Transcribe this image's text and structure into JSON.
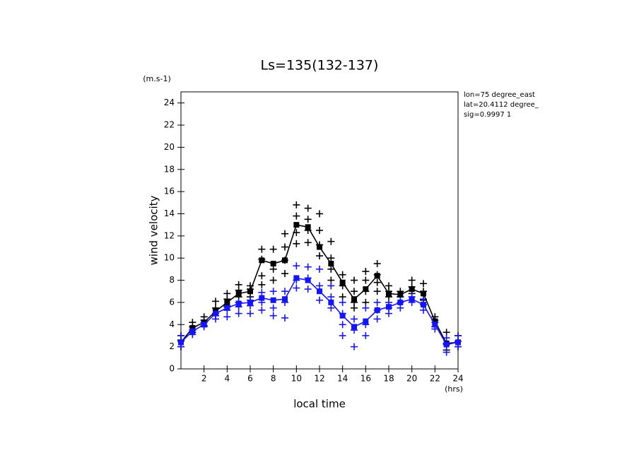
{
  "chart_data": {
    "type": "line",
    "title": "Ls=135(132-137)",
    "y_unit": "(m.s-1)",
    "ylabel": "wind velocity",
    "xlabel": "local time",
    "x_unit": "(hrs)",
    "annotations": [
      "lon=75 degree_east",
      "lat=20.4112 degree_",
      "sig=0.9997 1"
    ],
    "xlim": [
      0,
      24
    ],
    "ylim": [
      0,
      25
    ],
    "xticks": [
      2,
      4,
      6,
      8,
      10,
      12,
      14,
      16,
      18,
      20,
      22,
      24
    ],
    "yticks": [
      0,
      2,
      4,
      6,
      8,
      10,
      12,
      14,
      16,
      18,
      20,
      22,
      24
    ],
    "x": [
      0,
      1,
      2,
      3,
      4,
      5,
      6,
      7,
      8,
      9,
      10,
      11,
      12,
      13,
      14,
      15,
      16,
      17,
      18,
      19,
      20,
      21,
      22,
      23,
      24
    ],
    "series": [
      {
        "color": "#000000",
        "values": [
          2.4,
          3.7,
          4.2,
          5.2,
          6.0,
          6.8,
          7.0,
          9.8,
          9.5,
          9.8,
          13.0,
          12.8,
          11.0,
          9.5,
          7.8,
          6.3,
          7.2,
          8.4,
          6.8,
          6.7,
          7.2,
          6.8,
          4.3,
          2.3,
          2.4
        ]
      },
      {
        "color": "#1414ff",
        "values": [
          2.4,
          3.4,
          4.0,
          5.0,
          5.5,
          5.9,
          6.0,
          6.4,
          6.2,
          6.3,
          8.2,
          8.0,
          7.0,
          6.0,
          4.8,
          3.8,
          4.3,
          5.3,
          5.6,
          6.0,
          6.3,
          5.8,
          4.0,
          2.2,
          2.4
        ]
      }
    ],
    "points": [
      {
        "color": "#000000",
        "x": [
          0,
          0,
          0,
          1,
          1,
          1,
          2,
          2,
          2,
          3,
          3,
          3,
          4,
          4,
          4,
          5,
          5,
          5,
          6,
          6,
          6,
          7,
          7,
          7,
          7,
          8,
          8,
          8,
          9,
          9,
          9,
          9,
          10,
          10,
          10,
          10,
          11,
          11,
          11,
          11,
          12,
          12,
          12,
          12,
          13,
          13,
          13,
          13,
          14,
          14,
          14,
          15,
          15,
          15,
          15,
          16,
          16,
          16,
          16,
          17,
          17,
          17,
          17,
          18,
          18,
          18,
          19,
          19,
          20,
          20,
          20,
          21,
          21,
          21,
          22,
          22,
          22,
          23,
          23,
          23,
          24,
          24,
          24
        ],
        "values": [
          2.0,
          2.6,
          3.0,
          3.3,
          3.8,
          4.2,
          3.9,
          4.4,
          4.7,
          4.8,
          5.5,
          6.1,
          5.6,
          6.3,
          6.8,
          6.5,
          7.1,
          7.6,
          6.5,
          7.2,
          7.5,
          7.6,
          8.4,
          9.9,
          10.8,
          8.0,
          9.0,
          10.8,
          8.6,
          9.8,
          11.0,
          12.2,
          11.3,
          12.3,
          13.8,
          14.8,
          11.4,
          12.5,
          13.5,
          14.5,
          10.2,
          11.2,
          12.5,
          14.0,
          8.0,
          9.0,
          10.0,
          11.5,
          6.5,
          7.5,
          8.5,
          5.5,
          6.0,
          7.0,
          8.0,
          6.0,
          7.0,
          8.0,
          8.8,
          7.0,
          7.8,
          8.5,
          9.5,
          6.5,
          7.0,
          7.5,
          6.5,
          7.0,
          6.8,
          7.4,
          8.0,
          6.2,
          7.0,
          7.7,
          3.8,
          4.4,
          4.7,
          1.7,
          2.3,
          3.3,
          2.0,
          2.5,
          3.0
        ]
      },
      {
        "color": "#1414ff",
        "x": [
          0,
          0,
          0,
          1,
          1,
          2,
          2,
          3,
          3,
          4,
          4,
          4,
          5,
          5,
          5,
          6,
          6,
          6,
          7,
          7,
          7,
          8,
          8,
          8,
          9,
          9,
          9,
          10,
          10,
          10,
          11,
          11,
          11,
          12,
          12,
          12,
          13,
          13,
          13,
          14,
          14,
          14,
          14,
          15,
          15,
          15,
          16,
          16,
          16,
          17,
          17,
          17,
          18,
          18,
          18,
          19,
          19,
          19,
          20,
          20,
          21,
          21,
          21,
          22,
          22,
          23,
          23,
          23,
          24,
          24,
          24
        ],
        "values": [
          2.0,
          2.5,
          3.0,
          3.1,
          3.5,
          3.8,
          4.2,
          4.5,
          5.0,
          4.7,
          5.3,
          5.7,
          5.0,
          5.6,
          6.0,
          5.0,
          5.7,
          6.2,
          5.3,
          6.0,
          6.9,
          4.8,
          5.5,
          7.0,
          4.6,
          6.0,
          7.0,
          7.3,
          8.0,
          9.3,
          7.2,
          8.2,
          9.2,
          6.2,
          7.5,
          9.0,
          5.5,
          6.5,
          7.5,
          3.0,
          4.0,
          5.0,
          6.0,
          2.0,
          3.5,
          4.5,
          3.0,
          4.0,
          5.5,
          4.5,
          5.3,
          6.0,
          5.0,
          5.5,
          6.0,
          5.5,
          6.0,
          6.5,
          6.0,
          6.5,
          5.3,
          5.8,
          6.3,
          3.6,
          4.2,
          1.5,
          2.2,
          2.8,
          2.0,
          2.5,
          3.0
        ]
      }
    ]
  }
}
